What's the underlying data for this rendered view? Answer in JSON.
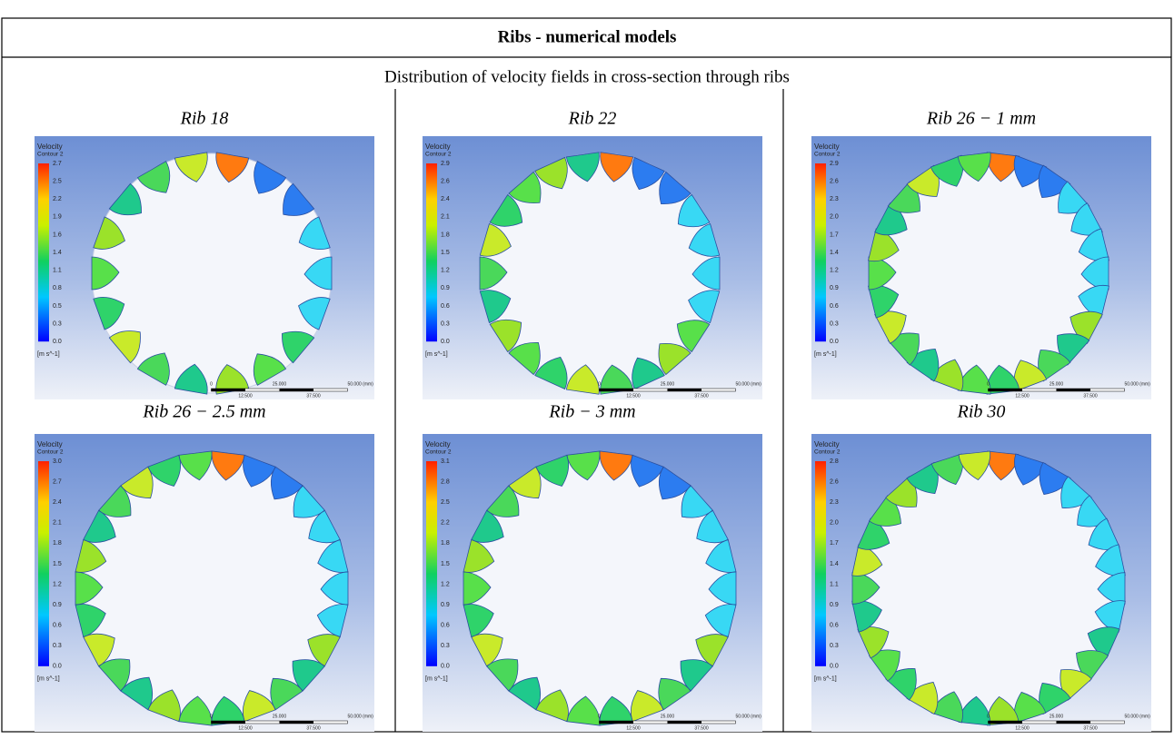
{
  "header": {
    "title": "Ribs - numerical models",
    "subtitle": "Distribution of velocity fields in cross-section through ribs"
  },
  "panels": [
    {
      "label": "Rib 18",
      "legend": {
        "title": "Velocity",
        "subtitle": "Contour 2",
        "ticks": [
          "2.7",
          "2.5",
          "2.2",
          "1.9",
          "1.6",
          "1.4",
          "1.1",
          "0.8",
          "0.5",
          "0.3",
          "0.0"
        ],
        "unit": "[m s^-1]"
      },
      "scale": {
        "top": [
          "0",
          "25.000",
          "50.000 (mm)"
        ],
        "bottom": [
          "12.500",
          "37.500"
        ]
      }
    },
    {
      "label": "Rib 22",
      "legend": {
        "title": "Velocity",
        "subtitle": "Contour 2",
        "ticks": [
          "2.9",
          "2.6",
          "2.4",
          "2.1",
          "1.8",
          "1.5",
          "1.2",
          "0.9",
          "0.6",
          "0.3",
          "0.0"
        ],
        "unit": "[m s^-1]"
      },
      "scale": {
        "top": [
          "0",
          "25.000",
          "50.000 (mm)"
        ],
        "bottom": [
          "12.500",
          "37.500"
        ]
      }
    },
    {
      "label": "Rib 26 − 1 mm",
      "legend": {
        "title": "Velocity",
        "subtitle": "Contour 2",
        "ticks": [
          "2.9",
          "2.6",
          "2.3",
          "2.0",
          "1.7",
          "1.4",
          "1.2",
          "0.9",
          "0.6",
          "0.3",
          "0.0"
        ],
        "unit": "[m s^-1]"
      },
      "scale": {
        "top": [
          "0",
          "25.000",
          "50.000 (mm)"
        ],
        "bottom": [
          "12.500",
          "37.500"
        ]
      }
    },
    {
      "label": "Rib 26 − 2.5 mm",
      "legend": {
        "title": "Velocity",
        "subtitle": "Contour 2",
        "ticks": [
          "3.0",
          "2.7",
          "2.4",
          "2.1",
          "1.8",
          "1.5",
          "1.2",
          "0.9",
          "0.6",
          "0.3",
          "0.0"
        ],
        "unit": "[m s^-1]"
      },
      "scale": {
        "top": [
          "0",
          "25.000",
          "50.000 (mm)"
        ],
        "bottom": [
          "12.500",
          "37.500"
        ]
      }
    },
    {
      "label": "Rib − 3 mm",
      "legend": {
        "title": "Velocity",
        "subtitle": "Contour 2",
        "ticks": [
          "3.1",
          "2.8",
          "2.5",
          "2.2",
          "1.8",
          "1.5",
          "1.2",
          "0.9",
          "0.6",
          "0.3",
          "0.0"
        ],
        "unit": "[m s^-1]"
      },
      "scale": {
        "top": [
          "0",
          "25.000",
          "50.000 (mm)"
        ],
        "bottom": [
          "12.500",
          "37.500"
        ]
      }
    },
    {
      "label": "Rib 30",
      "legend": {
        "title": "Velocity",
        "subtitle": "Contour 2",
        "ticks": [
          "2.8",
          "2.6",
          "2.3",
          "2.0",
          "1.7",
          "1.4",
          "1.1",
          "0.9",
          "0.6",
          "0.3",
          "0.0"
        ],
        "unit": "[m s^-1]"
      },
      "scale": {
        "top": [
          "0",
          "25.000",
          "50.000 (mm)"
        ],
        "bottom": [
          "12.500",
          "37.500"
        ]
      }
    }
  ]
}
